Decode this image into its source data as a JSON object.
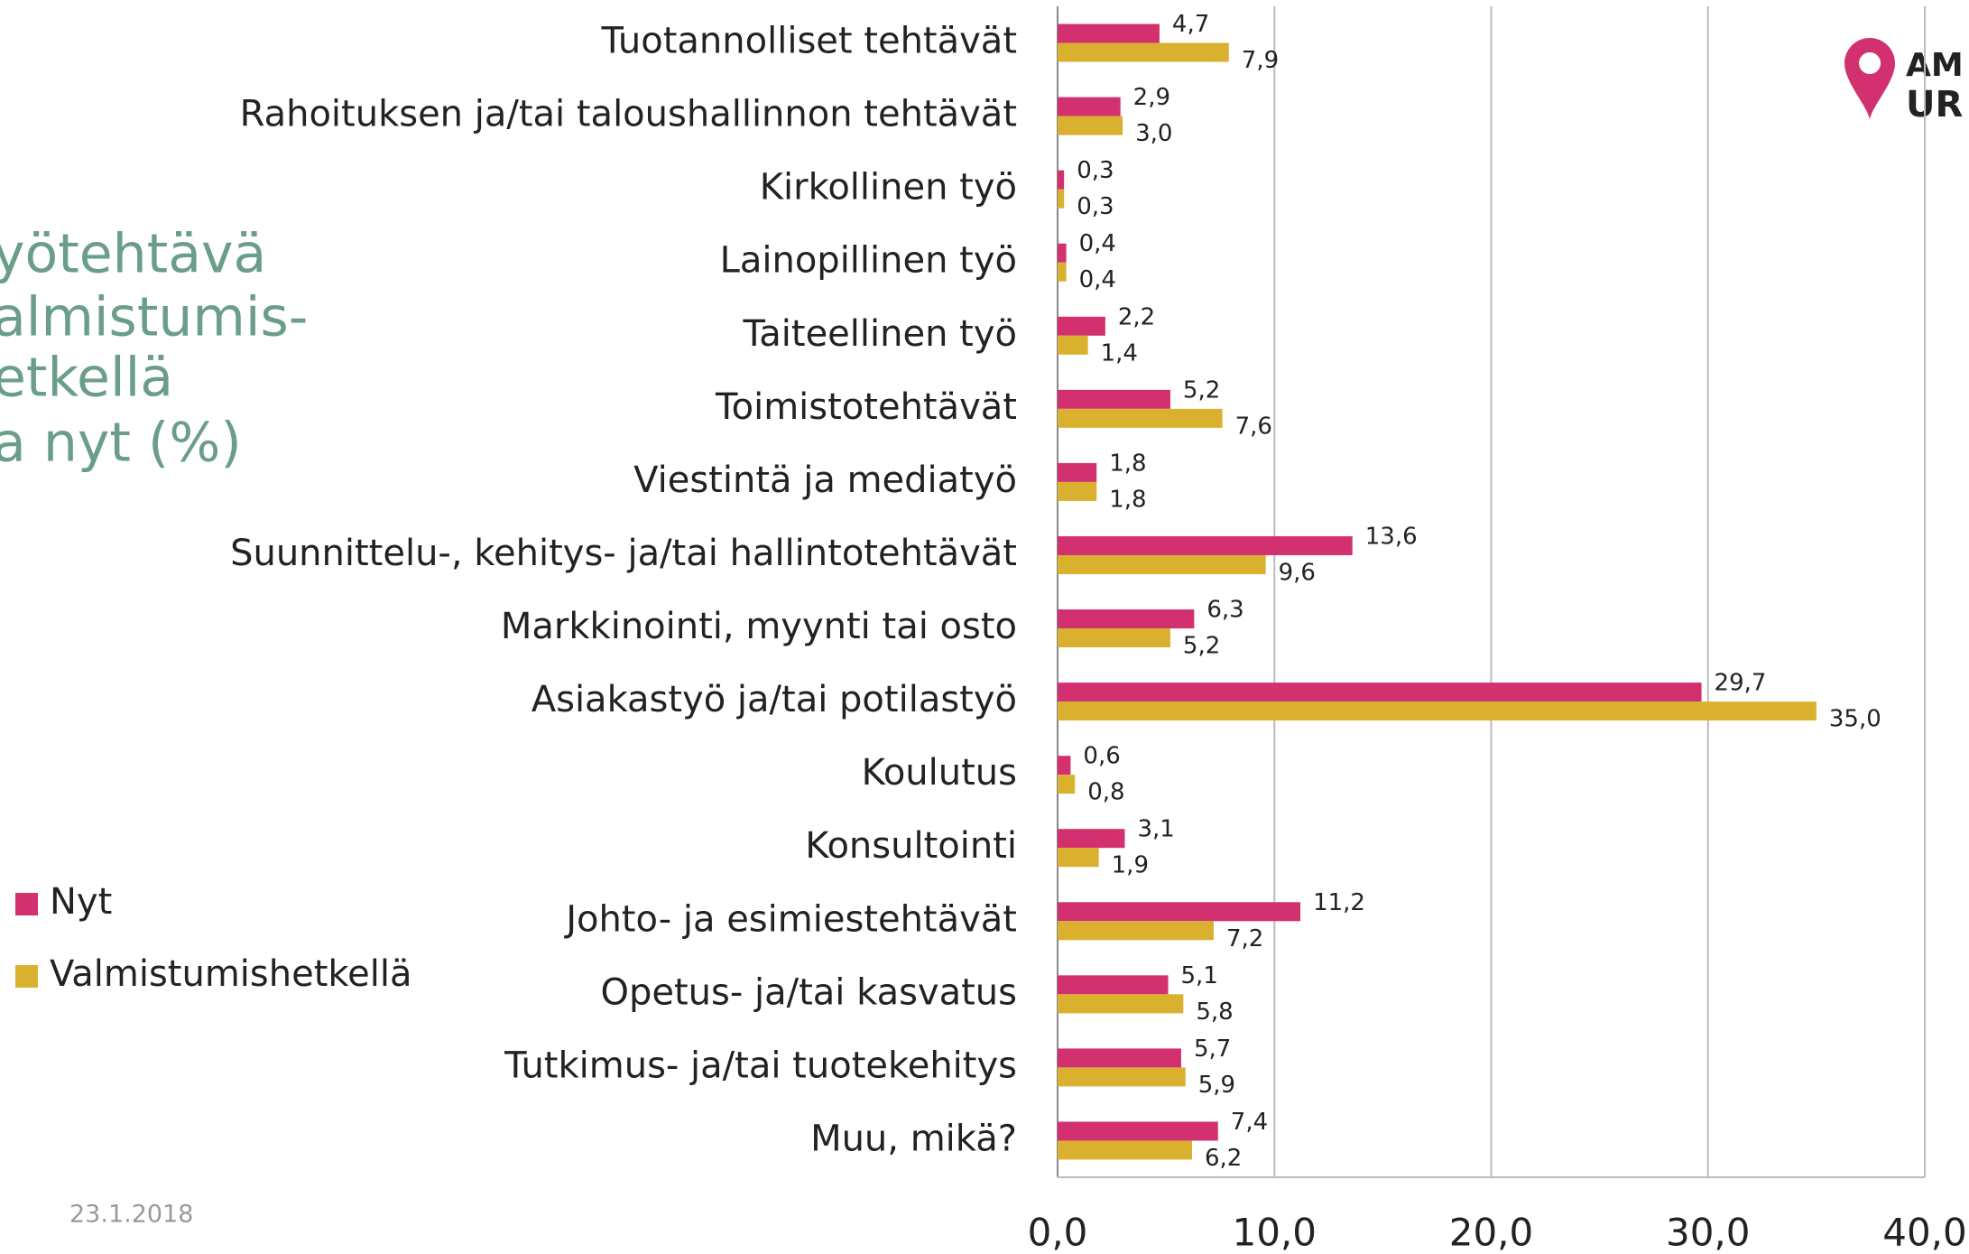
{
  "chart_data": {
    "type": "bar",
    "orientation": "horizontal",
    "title_lines": [
      "yötehtävä",
      "almistumis-",
      "etkellä",
      "a nyt (%)"
    ],
    "date": "23.1.2018",
    "logo": [
      "AM",
      "UR"
    ],
    "categories": [
      "Tuotannolliset tehtävät",
      "Rahoituksen ja/tai taloushallinnon tehtävät",
      "Kirkollinen työ",
      "Lainopillinen työ",
      "Taiteellinen työ",
      "Toimistotehtävät",
      "Viestintä ja mediatyö",
      "Suunnittelu-, kehitys- ja/tai hallintotehtävät",
      "Markkinointi, myynti tai osto",
      "Asiakastyö ja/tai potilastyö",
      "Koulutus",
      "Konsultointi",
      "Johto- ja esimiestehtävät",
      "Opetus- ja/tai kasvatus",
      "Tutkimus- ja/tai tuotekehitys",
      "Muu, mikä?"
    ],
    "series": [
      {
        "name": "Nyt",
        "color": "#d3306f",
        "values": [
          4.7,
          2.9,
          0.3,
          0.4,
          2.2,
          5.2,
          1.8,
          13.6,
          6.3,
          29.7,
          0.6,
          3.1,
          11.2,
          5.1,
          5.7,
          7.4
        ],
        "value_labels": [
          "4,7",
          "2,9",
          "0,3",
          "0,4",
          "2,2",
          "5,2",
          "1,8",
          "13,6",
          "6,3",
          "29,7",
          "0,6",
          "3,1",
          "11,2",
          "5,1",
          "5,7",
          "7,4"
        ]
      },
      {
        "name": "Valmistumishetkellä",
        "color": "#d9b12f",
        "values": [
          7.9,
          3.0,
          0.3,
          0.4,
          1.4,
          7.6,
          1.8,
          9.6,
          5.2,
          35.0,
          0.8,
          1.9,
          7.2,
          5.8,
          5.9,
          6.2
        ],
        "value_labels": [
          "7,9",
          "3,0",
          "0,3",
          "0,4",
          "1,4",
          "7,6",
          "1,8",
          "9,6",
          "5,2",
          "35,0",
          "0,8",
          "1,9",
          "7,2",
          "5,8",
          "5,9",
          "6,2"
        ]
      }
    ],
    "xlim": [
      0,
      40
    ],
    "xticks": [
      {
        "value": 0,
        "label": "0,0"
      },
      {
        "value": 10,
        "label": "10,0"
      },
      {
        "value": 20,
        "label": "20,0"
      },
      {
        "value": 30,
        "label": "30,0"
      },
      {
        "value": 40,
        "label": "40,0"
      }
    ],
    "grid": true,
    "legend": "left"
  }
}
